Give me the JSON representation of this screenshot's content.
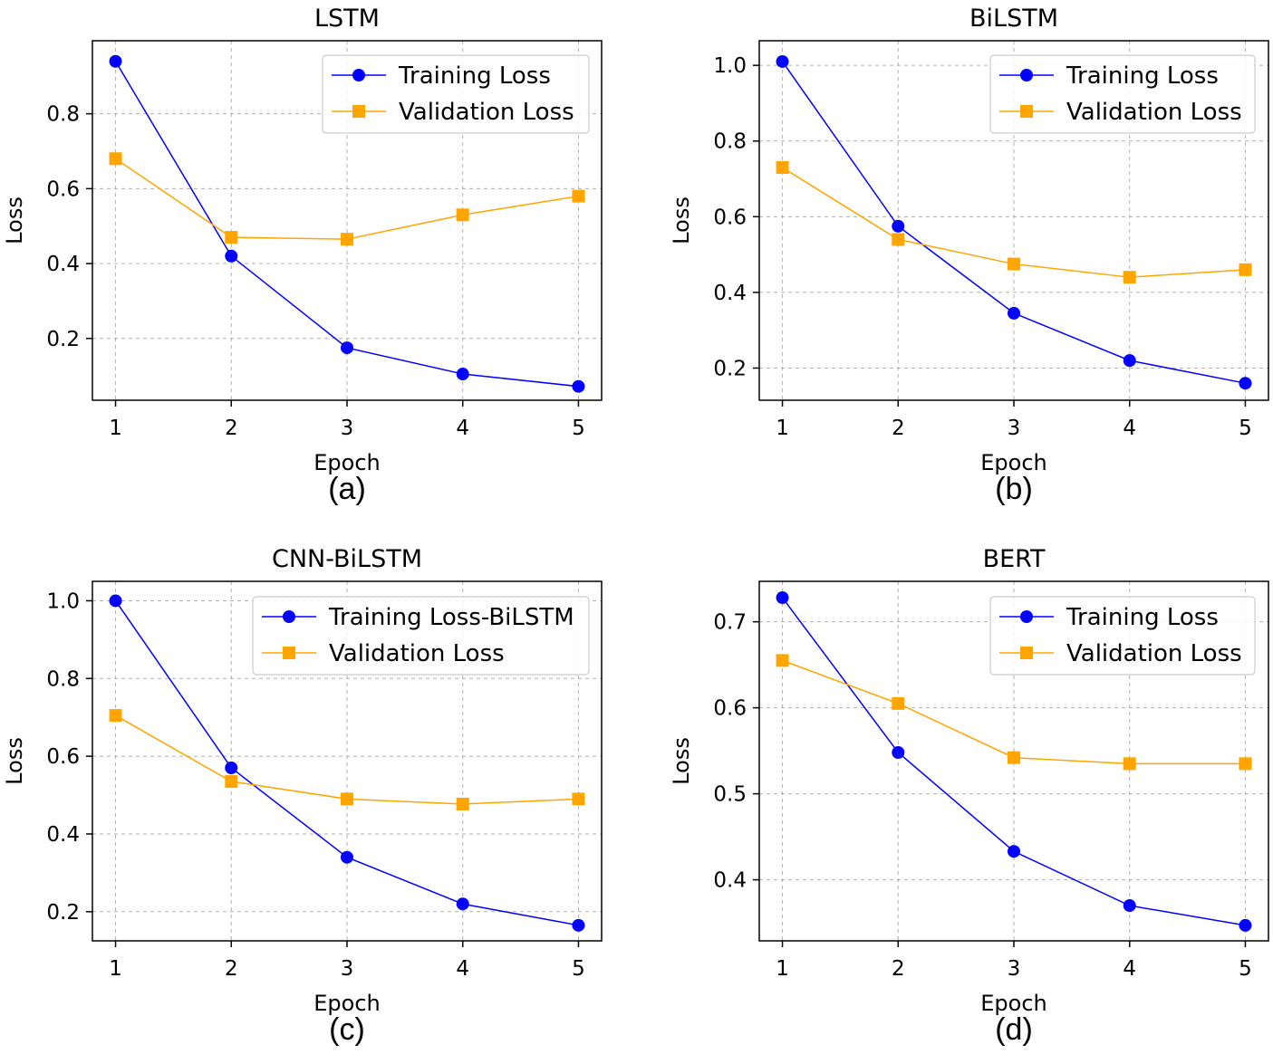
{
  "chart_data": [
    {
      "type": "line",
      "title": "LSTM",
      "caption": "(a)",
      "xlabel": "Epoch",
      "ylabel": "Loss",
      "x": [
        1,
        2,
        3,
        4,
        5
      ],
      "xlim": [
        0.8,
        5.2
      ],
      "ylim": [
        0.035,
        0.995
      ],
      "yticks": [
        0.2,
        0.4,
        0.6,
        0.8
      ],
      "ytick_labels": [
        "0.2",
        "0.4",
        "0.6",
        "0.8"
      ],
      "xtick_labels": [
        "1",
        "2",
        "3",
        "4",
        "5"
      ],
      "grid": true,
      "legend": "top-right",
      "series": [
        {
          "name": "Training Loss",
          "color": "#0000ff",
          "marker": "circle",
          "values": [
            0.94,
            0.42,
            0.175,
            0.105,
            0.072
          ]
        },
        {
          "name": "Validation Loss",
          "color": "#ffa500",
          "marker": "square",
          "values": [
            0.68,
            0.47,
            0.465,
            0.53,
            0.58
          ]
        }
      ]
    },
    {
      "type": "line",
      "title": "BiLSTM",
      "caption": "(b)",
      "xlabel": "Epoch",
      "ylabel": "Loss",
      "x": [
        1,
        2,
        3,
        4,
        5
      ],
      "xlim": [
        0.8,
        5.2
      ],
      "ylim": [
        0.115,
        1.065
      ],
      "yticks": [
        0.2,
        0.4,
        0.6,
        0.8,
        1.0
      ],
      "ytick_labels": [
        "0.2",
        "0.4",
        "0.6",
        "0.8",
        "1.0"
      ],
      "xtick_labels": [
        "1",
        "2",
        "3",
        "4",
        "5"
      ],
      "grid": true,
      "legend": "top-right",
      "series": [
        {
          "name": "Training Loss",
          "color": "#0000ff",
          "marker": "circle",
          "values": [
            1.01,
            0.575,
            0.345,
            0.22,
            0.16
          ]
        },
        {
          "name": "Validation Loss",
          "color": "#ffa500",
          "marker": "square",
          "values": [
            0.73,
            0.54,
            0.475,
            0.44,
            0.46
          ]
        }
      ]
    },
    {
      "type": "line",
      "title": "CNN-BiLSTM",
      "caption": "(c)",
      "xlabel": "Epoch",
      "ylabel": "Loss",
      "x": [
        1,
        2,
        3,
        4,
        5
      ],
      "xlim": [
        0.8,
        5.2
      ],
      "ylim": [
        0.125,
        1.05
      ],
      "yticks": [
        0.2,
        0.4,
        0.6,
        0.8,
        1.0
      ],
      "ytick_labels": [
        "0.2",
        "0.4",
        "0.6",
        "0.8",
        "1.0"
      ],
      "xtick_labels": [
        "1",
        "2",
        "3",
        "4",
        "5"
      ],
      "grid": true,
      "legend": "top-right",
      "series": [
        {
          "name": "Training Loss-BiLSTM",
          "color": "#0000ff",
          "marker": "circle",
          "values": [
            1.0,
            0.57,
            0.34,
            0.22,
            0.165
          ]
        },
        {
          "name": "Validation Loss",
          "color": "#ffa500",
          "marker": "square",
          "values": [
            0.705,
            0.535,
            0.49,
            0.477,
            0.49
          ]
        }
      ]
    },
    {
      "type": "line",
      "title": "BERT",
      "caption": "(d)",
      "xlabel": "Epoch",
      "ylabel": "Loss",
      "x": [
        1,
        2,
        3,
        4,
        5
      ],
      "xlim": [
        0.8,
        5.2
      ],
      "ylim": [
        0.329,
        0.747
      ],
      "yticks": [
        0.4,
        0.5,
        0.6,
        0.7
      ],
      "ytick_labels": [
        "0.4",
        "0.5",
        "0.6",
        "0.7"
      ],
      "xtick_labels": [
        "1",
        "2",
        "3",
        "4",
        "5"
      ],
      "grid": true,
      "legend": "top-right",
      "series": [
        {
          "name": "Training Loss",
          "color": "#0000ff",
          "marker": "circle",
          "values": [
            0.728,
            0.548,
            0.433,
            0.37,
            0.347
          ]
        },
        {
          "name": "Validation Loss",
          "color": "#ffa500",
          "marker": "square",
          "values": [
            0.655,
            0.605,
            0.542,
            0.535,
            0.535
          ]
        }
      ]
    }
  ]
}
